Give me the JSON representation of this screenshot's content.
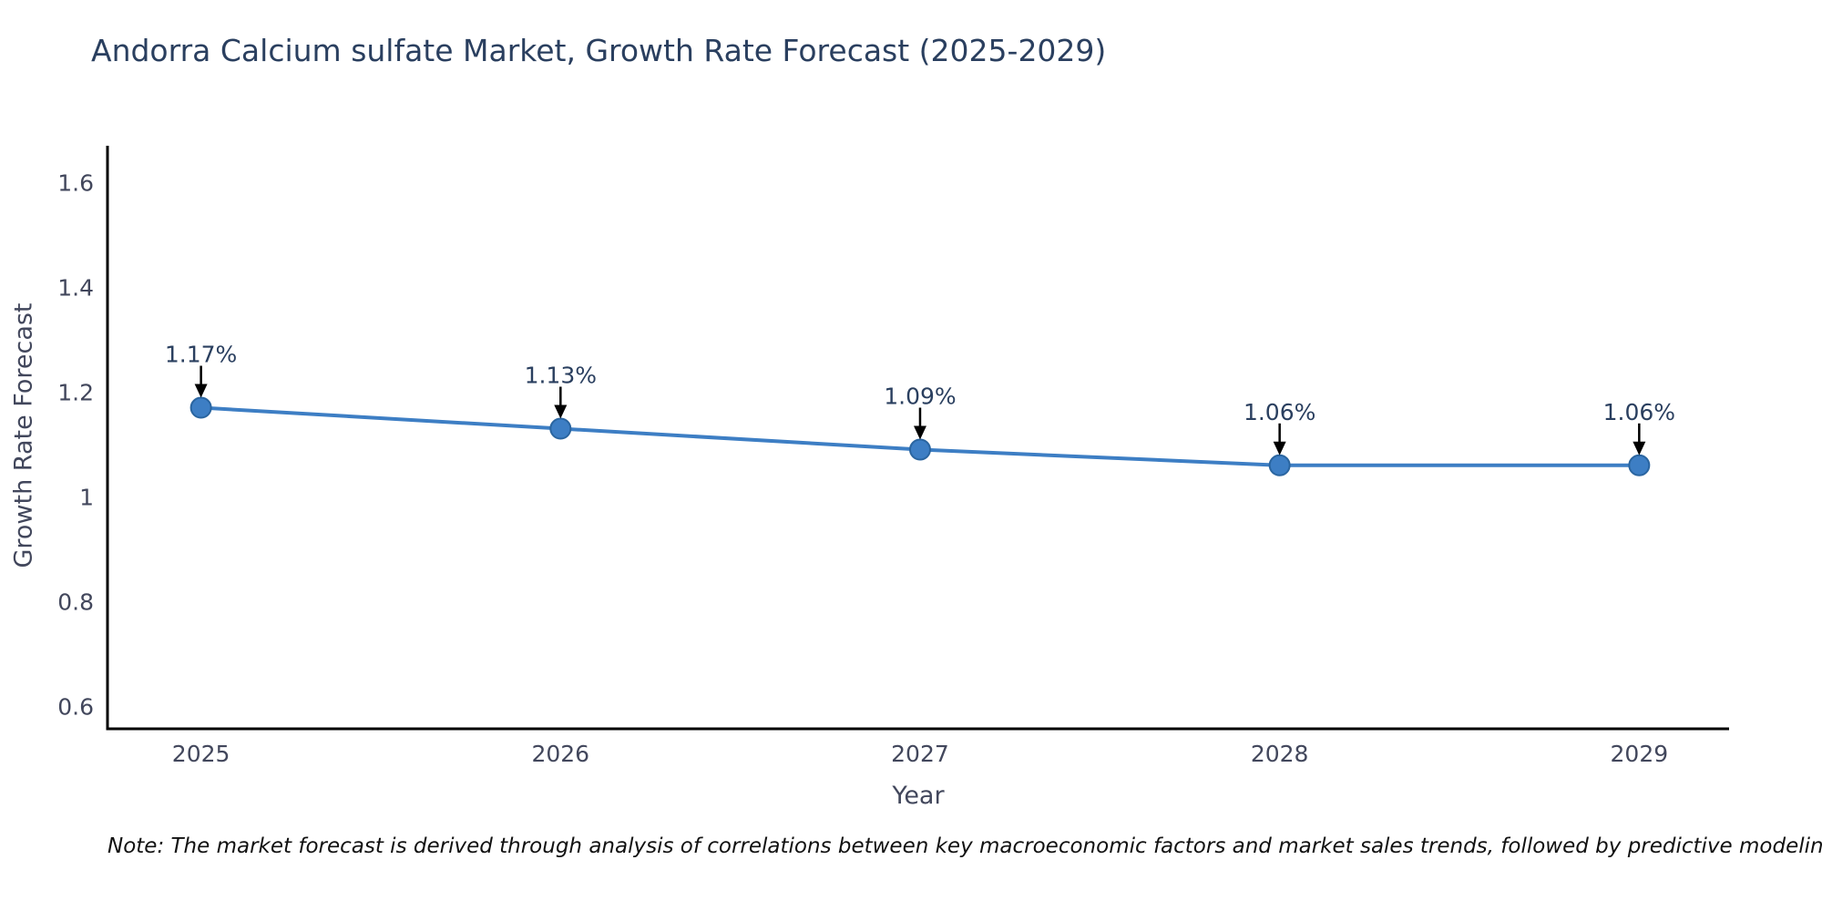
{
  "chart_data": {
    "type": "line",
    "title": "Andorra Calcium sulfate Market, Growth Rate Forecast (2025-2029)",
    "xlabel": "Year",
    "ylabel": "Growth Rate Forecast",
    "x": [
      2025,
      2026,
      2027,
      2028,
      2029
    ],
    "values": [
      1.17,
      1.13,
      1.09,
      1.06,
      1.06
    ],
    "point_labels": [
      "1.17%",
      "1.13%",
      "1.09%",
      "1.06%",
      "1.06%"
    ],
    "xticks": {
      "values": [
        2025,
        2026,
        2027,
        2028,
        2029
      ],
      "labels": [
        "2025",
        "2026",
        "2027",
        "2028",
        "2029"
      ]
    },
    "yticks": {
      "values": [
        0.6,
        0.8,
        1.0,
        1.2,
        1.4,
        1.6
      ],
      "labels": [
        "0.6",
        "0.8",
        "1",
        "1.2",
        "1.4",
        "1.6"
      ]
    },
    "xlim": [
      2024.74,
      2029.25
    ],
    "ylim": [
      0.557,
      1.67
    ],
    "grid": false,
    "legend": false,
    "colors": {
      "line": "#3d7ec4",
      "marker_fill": "#3d7ec4",
      "marker_edge": "#2a65a0",
      "annotation_arrow": "#000000",
      "annotation_text": "#2a3f5f",
      "axis_line": "#000000",
      "tick_text": "#42475c",
      "title_text": "#2a3f5f"
    }
  },
  "note": "Note: The market forecast is derived through analysis of correlations between key macroeconomic factors and market sales trends, followed by predictive modeling to project future sales"
}
